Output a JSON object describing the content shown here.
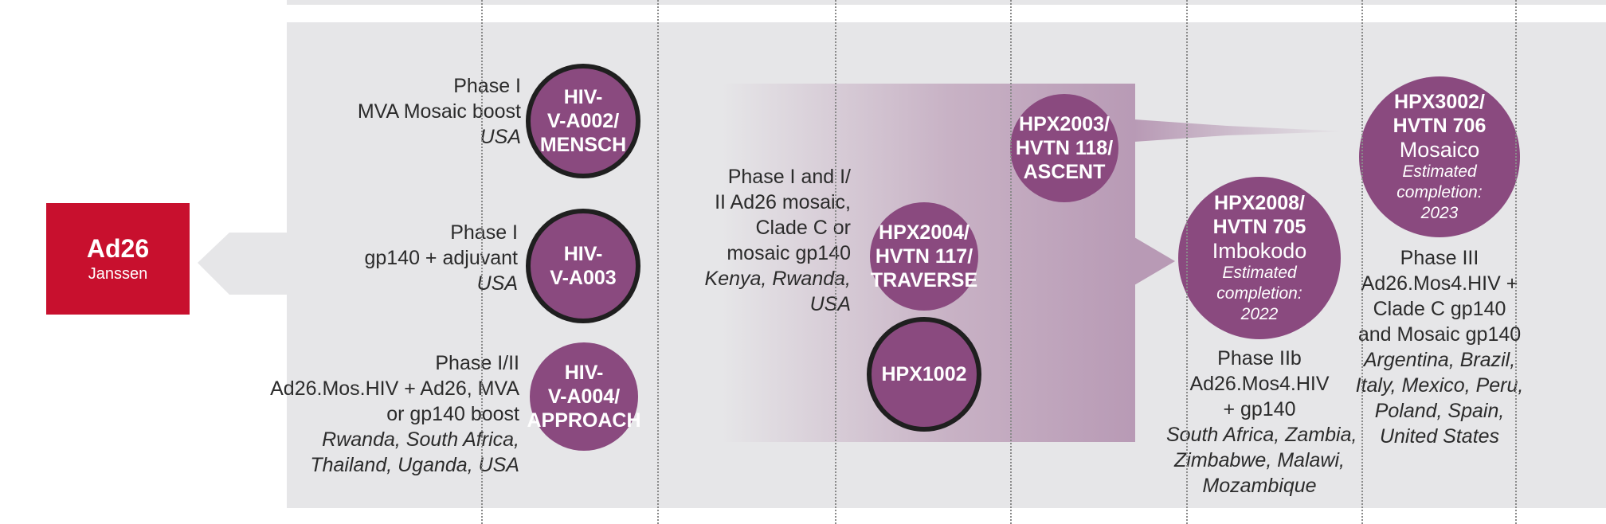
{
  "sponsor": {
    "name": "Ad26",
    "company": "Janssen",
    "color": "#c8102e"
  },
  "colors": {
    "circle": "#8a4a7f",
    "ring": "#1f1f1f",
    "band": "#b89ab5",
    "panel": "#e6e6e8"
  },
  "trials": {
    "a002": {
      "lines": [
        "HIV-",
        "V-A002/",
        "MENSCH"
      ],
      "desc": [
        "Phase I",
        "MVA Mosaic boost"
      ],
      "loc": [
        "USA"
      ]
    },
    "a003": {
      "lines": [
        "HIV-",
        "V-A003"
      ],
      "desc": [
        "Phase I",
        "gp140 + adjuvant"
      ],
      "loc": [
        "USA"
      ]
    },
    "a004": {
      "lines": [
        "HIV-",
        "V-A004/",
        "APPROACH"
      ],
      "desc": [
        "Phase I/II",
        "Ad26.Mos.HIV + Ad26, MVA",
        "or gp140 boost"
      ],
      "loc": [
        "Rwanda, South Africa,",
        "Thailand, Uganda, USA"
      ]
    },
    "group": {
      "desc": [
        "Phase I and I/",
        "II Ad26 mosaic,",
        "Clade C or",
        "mosaic gp140"
      ],
      "loc": [
        "Kenya, Rwanda,",
        "USA"
      ]
    },
    "hpx2004": {
      "lines": [
        "HPX2004/",
        "HVTN 117/",
        "TRAVERSE"
      ]
    },
    "hpx1002": {
      "lines": [
        "HPX1002"
      ]
    },
    "hpx2003": {
      "lines": [
        "HPX2003/",
        "HVTN 118/",
        "ASCENT"
      ]
    },
    "hpx2008": {
      "lines": [
        "HPX2008/",
        "HVTN 705"
      ],
      "name": "Imbokodo",
      "est": [
        "Estimated",
        "completion:",
        "2022"
      ],
      "desc": [
        "Phase IIb",
        "Ad26.Mos4.HIV",
        "+ gp140"
      ],
      "loc": [
        "South Africa, Zambia,",
        "Zimbabwe, Malawi,",
        "Mozambique"
      ]
    },
    "hpx3002": {
      "lines": [
        "HPX3002/",
        "HVTN 706"
      ],
      "name": "Mosaico",
      "est": [
        "Estimated",
        "completion:",
        "2023"
      ],
      "desc": [
        "Phase III",
        "Ad26.Mos4.HIV +",
        "Clade C gp140",
        "and Mosaic gp140"
      ],
      "loc": [
        "Argentina, Brazil,",
        "Italy, Mexico, Peru,",
        "Poland, Spain,",
        "United States"
      ]
    }
  }
}
